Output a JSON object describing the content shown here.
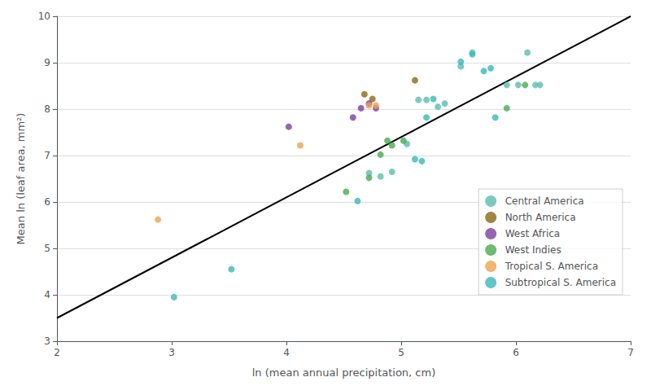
{
  "chart_data": {
    "type": "scatter",
    "xlabel": "ln (mean annual precipitation, cm)",
    "ylabel": "Mean ln (leaf area, mm²)",
    "xlim": [
      2,
      7
    ],
    "ylim": [
      3,
      10
    ],
    "xticks": [
      2,
      3,
      4,
      5,
      6,
      7
    ],
    "yticks": [
      3,
      4,
      5,
      6,
      7,
      8,
      9,
      10
    ],
    "grid": "y",
    "legend": "right",
    "series": [
      {
        "type": "line",
        "color": "#000000",
        "x": [
          2,
          7
        ],
        "values": [
          3.5,
          10.0
        ]
      },
      {
        "name": "Central America",
        "color": "#5abdb0",
        "x": [
          4.72,
          4.82,
          4.92,
          5.05,
          5.15,
          5.22,
          5.32,
          5.38,
          5.52,
          5.62,
          6.1,
          6.17,
          6.21,
          5.92,
          6.02
        ],
        "values": [
          6.62,
          6.55,
          6.65,
          7.25,
          8.2,
          8.2,
          8.05,
          8.12,
          8.92,
          9.22,
          9.22,
          8.52,
          8.52,
          8.52,
          8.52
        ]
      },
      {
        "name": "North America",
        "color": "#8B6914",
        "x": [
          4.68,
          4.75,
          5.12
        ],
        "values": [
          8.32,
          8.22,
          8.62
        ]
      },
      {
        "name": "West Africa",
        "color": "#7b3fa0",
        "x": [
          4.02,
          4.58,
          4.65,
          4.72,
          4.78
        ],
        "values": [
          7.62,
          7.82,
          8.02,
          8.12,
          8.02
        ]
      },
      {
        "name": "West Indies",
        "color": "#4aaa50",
        "x": [
          4.52,
          4.72,
          4.82,
          4.88,
          4.92,
          5.02,
          5.92,
          6.08
        ],
        "values": [
          6.22,
          6.52,
          7.02,
          7.32,
          7.22,
          7.32,
          8.02,
          8.52
        ]
      },
      {
        "name": "Tropical S. America",
        "color": "#f0a050",
        "x": [
          2.88,
          4.12,
          4.72,
          4.78
        ],
        "values": [
          5.62,
          7.22,
          8.08,
          8.08
        ]
      },
      {
        "name": "Subtropical S. America",
        "color": "#38b8b8",
        "x": [
          3.02,
          3.52,
          4.62,
          5.12,
          5.18,
          5.22,
          5.28,
          5.52,
          5.62,
          5.72,
          5.78,
          5.82
        ],
        "values": [
          3.95,
          4.55,
          6.02,
          6.92,
          6.88,
          7.82,
          8.22,
          9.02,
          9.18,
          8.82,
          8.88,
          7.82
        ]
      }
    ]
  }
}
